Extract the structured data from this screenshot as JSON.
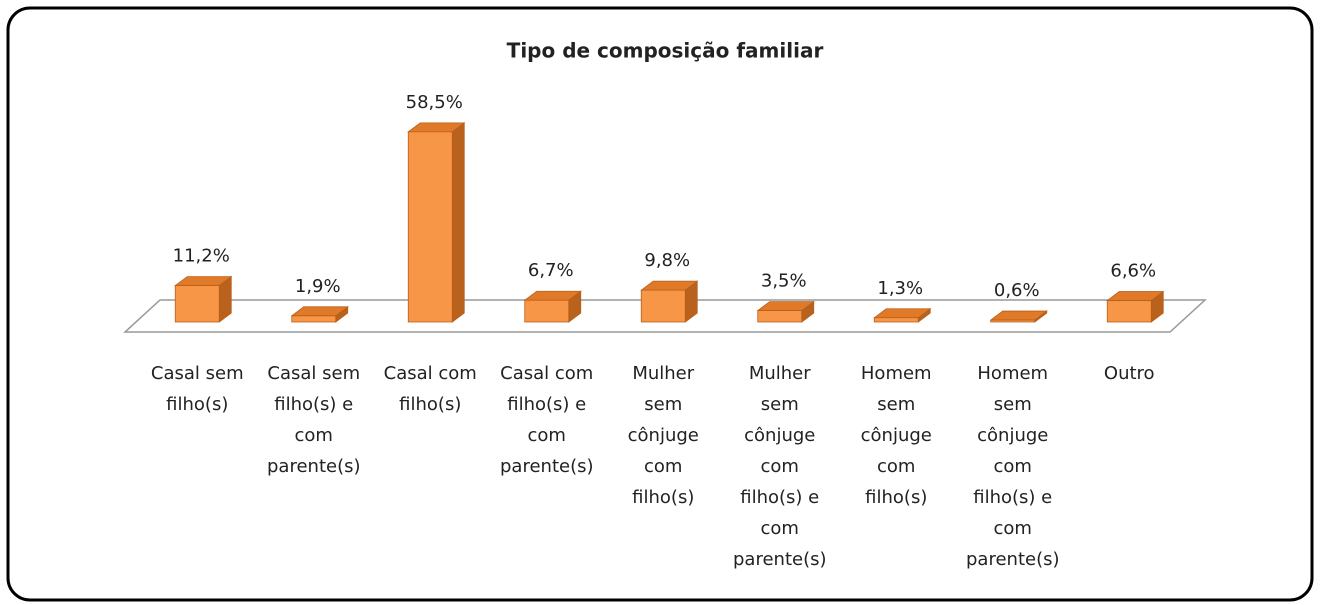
{
  "chart_data": {
    "type": "bar3d",
    "title": "Tipo de composição familiar",
    "categories": [
      "Casal sem filho(s)",
      "Casal sem filho(s) e com parente(s)",
      "Casal com filho(s)",
      "Casal com filho(s) e com parente(s)",
      "Mulher sem cônjuge com filho(s)",
      "Mulher sem cônjuge com filho(s) e com parente(s)",
      "Homem sem cônjuge com filho(s)",
      "Homem sem cônjuge com filho(s) e com parente(s)",
      "Outro"
    ],
    "values": [
      11.2,
      1.9,
      58.5,
      6.7,
      9.8,
      3.5,
      1.3,
      0.6,
      6.6
    ],
    "value_labels": [
      "11,2%",
      "1,9%",
      "58,5%",
      "6,7%",
      "9,8%",
      "3,5%",
      "1,3%",
      "0,6%",
      "6,6%"
    ],
    "color": "#f79646"
  }
}
